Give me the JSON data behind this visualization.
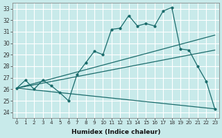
{
  "title": "",
  "xlabel": "Humidex (Indice chaleur)",
  "bg_color": "#c8eaea",
  "line_color": "#1a6b6b",
  "grid_color": "#b0d8d8",
  "xlim": [
    -0.5,
    23.5
  ],
  "ylim": [
    23.5,
    33.5
  ],
  "yticks": [
    24,
    25,
    26,
    27,
    28,
    29,
    30,
    31,
    32,
    33
  ],
  "xticks": [
    0,
    1,
    2,
    3,
    4,
    5,
    6,
    7,
    8,
    9,
    10,
    11,
    12,
    13,
    14,
    15,
    16,
    17,
    18,
    19,
    20,
    21,
    22,
    23
  ],
  "line_main_x": [
    0,
    1,
    2,
    3,
    4,
    5,
    6,
    7,
    8,
    9,
    10,
    11,
    12,
    13,
    14,
    15,
    16,
    17,
    18,
    19,
    20,
    21,
    22,
    23
  ],
  "line_main_y": [
    26.1,
    26.8,
    26.0,
    26.8,
    26.3,
    25.7,
    25.0,
    27.3,
    28.3,
    29.3,
    29.0,
    31.2,
    31.3,
    32.4,
    31.5,
    31.7,
    31.5,
    32.8,
    33.1,
    29.5,
    29.4,
    28.0,
    26.7,
    24.3
  ],
  "line_diag_up": [
    [
      0,
      26.1
    ],
    [
      23,
      30.7
    ]
  ],
  "line_diag_mid": [
    [
      0,
      26.1
    ],
    [
      23,
      29.4
    ]
  ],
  "line_diag_down": [
    [
      0,
      26.1
    ],
    [
      23,
      24.3
    ]
  ]
}
